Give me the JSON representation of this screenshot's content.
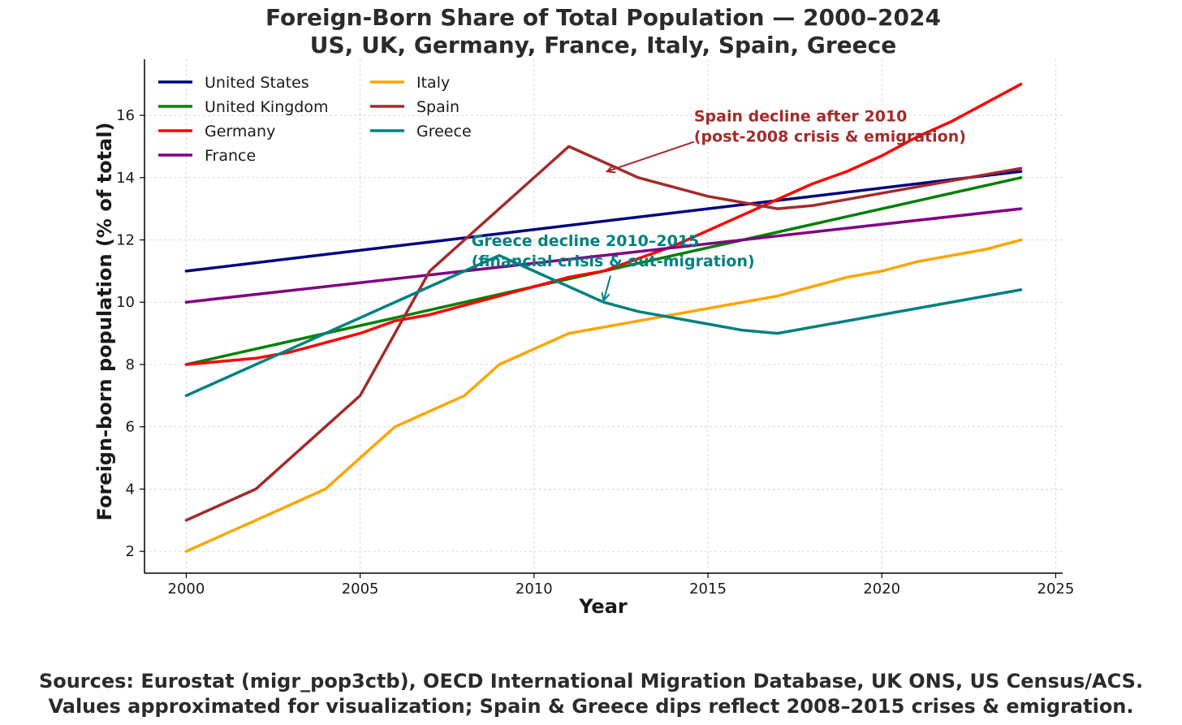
{
  "chart_data": {
    "type": "line",
    "title_line1": "Foreign-Born Share of Total Population — 2000–2024",
    "title_line2": "US, UK, Germany, France, Italy, Spain, Greece",
    "xlabel": "Year",
    "ylabel": "Foreign-born population (% of total)",
    "xlim": [
      1998.8,
      2025.2
    ],
    "ylim": [
      1.3,
      17.8
    ],
    "xticks": [
      2000,
      2005,
      2010,
      2015,
      2020,
      2025
    ],
    "yticks": [
      2,
      4,
      6,
      8,
      10,
      12,
      14,
      16
    ],
    "grid": true,
    "legend_placement": "top-left",
    "series": [
      {
        "name": "United States",
        "color": "#000080",
        "points": [
          [
            2000,
            11.0
          ],
          [
            2024,
            14.2
          ]
        ]
      },
      {
        "name": "United Kingdom",
        "color": "#008000",
        "points": [
          [
            2000,
            8.0
          ],
          [
            2024,
            14.0
          ]
        ]
      },
      {
        "name": "Germany",
        "color": "#ff0000",
        "points": [
          [
            2000,
            8.0
          ],
          [
            2002,
            8.2
          ],
          [
            2003,
            8.4
          ],
          [
            2004,
            8.7
          ],
          [
            2005,
            9.0
          ],
          [
            2006,
            9.4
          ],
          [
            2007,
            9.6
          ],
          [
            2008,
            9.9
          ],
          [
            2009,
            10.2
          ],
          [
            2010,
            10.5
          ],
          [
            2011,
            10.8
          ],
          [
            2012,
            11.0
          ],
          [
            2013,
            11.4
          ],
          [
            2014,
            11.8
          ],
          [
            2015,
            12.3
          ],
          [
            2016,
            12.8
          ],
          [
            2017,
            13.3
          ],
          [
            2018,
            13.8
          ],
          [
            2019,
            14.2
          ],
          [
            2020,
            14.7
          ],
          [
            2021,
            15.3
          ],
          [
            2022,
            15.8
          ],
          [
            2023,
            16.4
          ],
          [
            2024,
            17.0
          ]
        ]
      },
      {
        "name": "France",
        "color": "#800080",
        "points": [
          [
            2000,
            10.0
          ],
          [
            2024,
            13.0
          ]
        ]
      },
      {
        "name": "Italy",
        "color": "#ffa500",
        "points": [
          [
            2000,
            2.0
          ],
          [
            2002,
            3.0
          ],
          [
            2004,
            4.0
          ],
          [
            2005,
            5.0
          ],
          [
            2006,
            6.0
          ],
          [
            2008,
            7.0
          ],
          [
            2009,
            8.0
          ],
          [
            2010,
            8.5
          ],
          [
            2011,
            9.0
          ],
          [
            2013,
            9.4
          ],
          [
            2015,
            9.8
          ],
          [
            2017,
            10.2
          ],
          [
            2019,
            10.8
          ],
          [
            2020,
            11.0
          ],
          [
            2021,
            11.3
          ],
          [
            2023,
            11.7
          ],
          [
            2024,
            12.0
          ]
        ]
      },
      {
        "name": "Spain",
        "color": "#a52a2a",
        "points": [
          [
            2000,
            3.0
          ],
          [
            2002,
            4.0
          ],
          [
            2005,
            7.0
          ],
          [
            2007,
            11.0
          ],
          [
            2008,
            12.0
          ],
          [
            2011,
            15.0
          ],
          [
            2013,
            14.0
          ],
          [
            2015,
            13.4
          ],
          [
            2017,
            13.0
          ],
          [
            2018,
            13.1
          ],
          [
            2024,
            14.3
          ]
        ]
      },
      {
        "name": "Greece",
        "color": "#008080",
        "points": [
          [
            2000,
            7.0
          ],
          [
            2004,
            9.0
          ],
          [
            2008,
            11.0
          ],
          [
            2009,
            11.5
          ],
          [
            2010,
            11.0
          ],
          [
            2012,
            10.0
          ],
          [
            2013,
            9.7
          ],
          [
            2016,
            9.1
          ],
          [
            2017,
            9.0
          ],
          [
            2024,
            10.4
          ]
        ]
      }
    ],
    "annotations": [
      {
        "line1": "Spain decline after 2010",
        "line2": "(post-2008 crisis & emigration)",
        "color": "#a52a2a",
        "text_x": 2014.6,
        "text_y": 15.8,
        "arrow_from": [
          2014.6,
          15.15
        ],
        "arrow_to": [
          2012.1,
          14.2
        ]
      },
      {
        "line1": "Greece decline 2010–2015",
        "line2": "(financial crisis & out-migration)",
        "color": "#008080",
        "text_x": 2008.2,
        "text_y": 11.8,
        "arrow_from": [
          2012.2,
          10.85
        ],
        "arrow_to": [
          2012.0,
          10.05
        ]
      }
    ]
  },
  "footer": {
    "line1": "Sources: Eurostat (migr_pop3ctb), OECD International Migration Database, UK ONS, US Census/ACS.",
    "line2": "Values approximated for visualization; Spain & Greece dips reflect 2008–2015 crises & emigration."
  }
}
